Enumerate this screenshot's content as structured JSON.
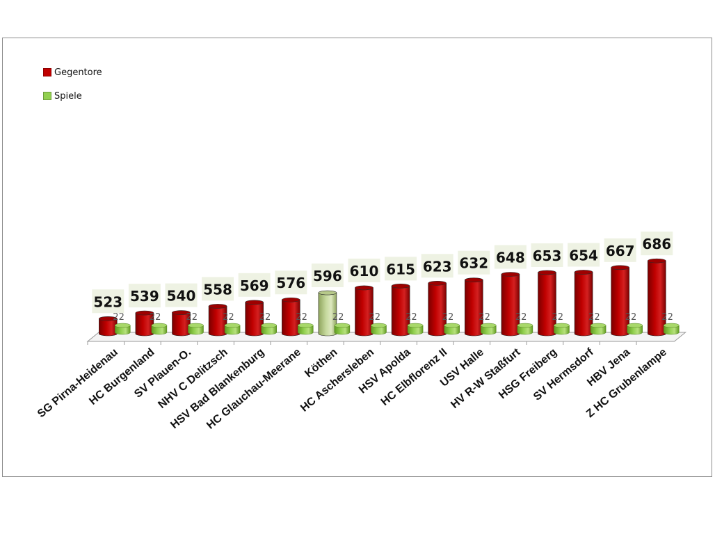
{
  "chart_data": {
    "type": "bar",
    "categories": [
      "SG Pirna-Heidenau",
      "HC Burgenland",
      "SV Plauen-O.",
      "NHV C Delitzsch",
      "HSV Bad Blankenburg",
      "HC Glauchau-Meerane",
      "Köthen",
      "HC Aschersleben",
      "HSV Apolda",
      "HC Elbflorenz II",
      "USV Halle",
      "HV R-W Staßfurt",
      "HSG Freiberg",
      "SV Hermsdorf",
      "HBV Jena",
      "Z HC Grubenlampe"
    ],
    "series": [
      {
        "name": "Gegentore",
        "values": [
          523,
          539,
          540,
          558,
          569,
          576,
          596,
          610,
          615,
          623,
          632,
          648,
          653,
          654,
          667,
          686
        ],
        "color": "#c00000"
      },
      {
        "name": "Spiele",
        "values": [
          22,
          22,
          22,
          22,
          22,
          22,
          22,
          22,
          22,
          22,
          22,
          22,
          22,
          22,
          22,
          22
        ],
        "color": "#92d050"
      }
    ],
    "highlight": {
      "category": "Köthen",
      "color": "#c4d79b"
    },
    "label_box_color": "#eef2e3",
    "bar_style": "3d-cylinder",
    "ylim": [
      0,
      700
    ],
    "grid": false,
    "legend_position": "top-left"
  }
}
